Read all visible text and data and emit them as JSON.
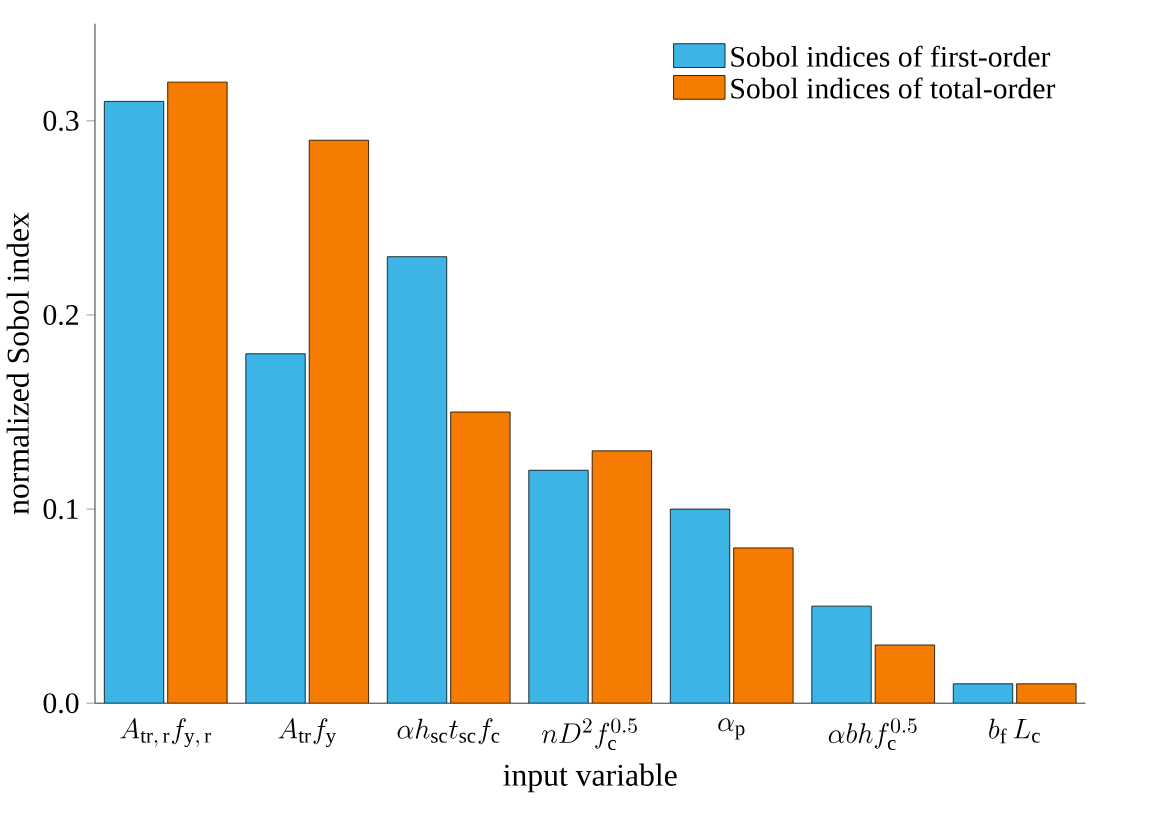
{
  "chart_data": {
    "type": "bar",
    "xlabel": "input variable",
    "ylabel": "normalized Sobol index",
    "categories": [
      "A_{\\mathrm{tr,\\,r}}f_{\\mathrm{y,\\,r}}",
      "A_{\\mathrm{tr}}f_{\\mathrm{y}}",
      "\\alpha h_{\\mathrm{sc}}t_{\\mathrm{sc}}f_{\\mathrm{c}}",
      "nD^{2}f_{\\mathrm{c}}^{0.5}",
      "\\alpha_{\\mathrm{p}}",
      "\\alpha bhf_{\\mathrm{c}}^{0.5}",
      "b_{\\mathrm{f}}\\,L_{\\mathrm{c}}"
    ],
    "series": [
      {
        "name": "Sobol indices of first-order",
        "color": "#3cb4e6",
        "values": [
          0.31,
          0.18,
          0.23,
          0.12,
          0.1,
          0.05,
          0.01
        ]
      },
      {
        "name": "Sobol indices of total-order",
        "color": "#f57c00",
        "values": [
          0.32,
          0.29,
          0.15,
          0.13,
          0.08,
          0.03,
          0.01
        ]
      }
    ],
    "ylim": [
      0,
      0.35
    ],
    "yticks": [
      {
        "value": 0,
        "label": "0.0"
      },
      {
        "value": 0.1,
        "label": "0.1"
      },
      {
        "value": 0.2,
        "label": "0.2"
      },
      {
        "value": 0.3,
        "label": "0.3"
      }
    ],
    "legend": "top right",
    "grid": false
  }
}
